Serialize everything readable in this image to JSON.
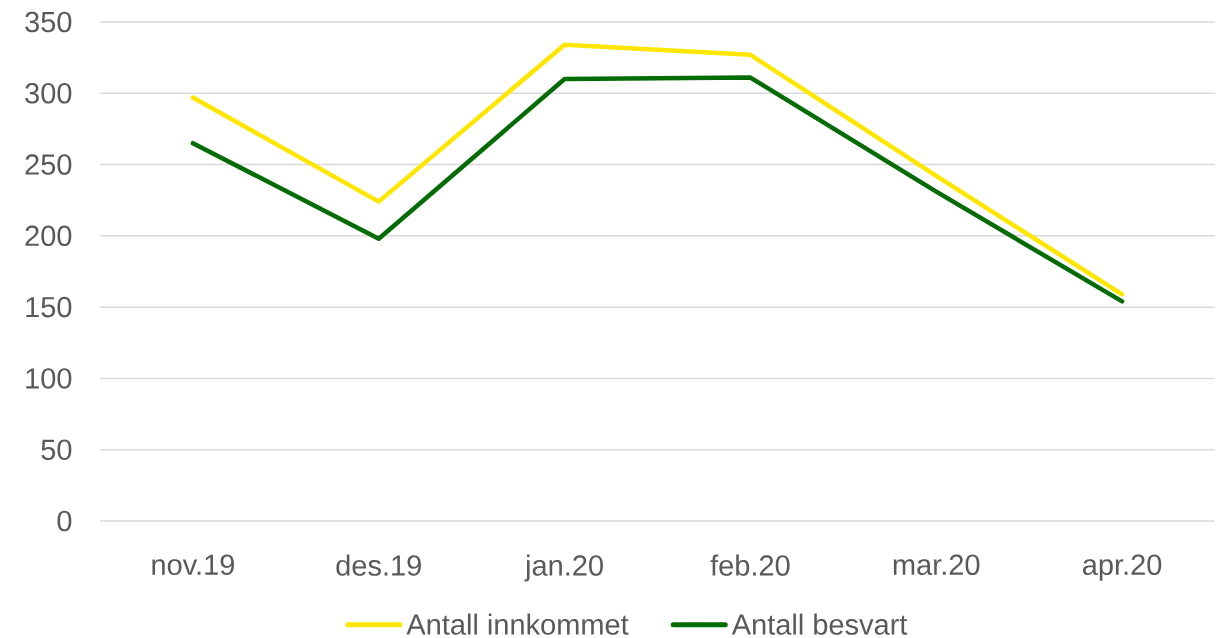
{
  "chart_data": {
    "type": "line",
    "categories": [
      "nov.19",
      "des.19",
      "jan.20",
      "feb.20",
      "mar.20",
      "apr.20"
    ],
    "series": [
      {
        "name": "Antall innkommet",
        "color": "#ffe600",
        "values": [
          297,
          224,
          334,
          327,
          242,
          159
        ]
      },
      {
        "name": "Antall besvart",
        "color": "#056b05",
        "values": [
          265,
          198,
          310,
          311,
          231,
          154
        ]
      }
    ],
    "ylim": [
      0,
      350
    ],
    "yticks": [
      0,
      50,
      100,
      150,
      200,
      250,
      300,
      350
    ],
    "grid": "y",
    "legend": "bottom"
  }
}
